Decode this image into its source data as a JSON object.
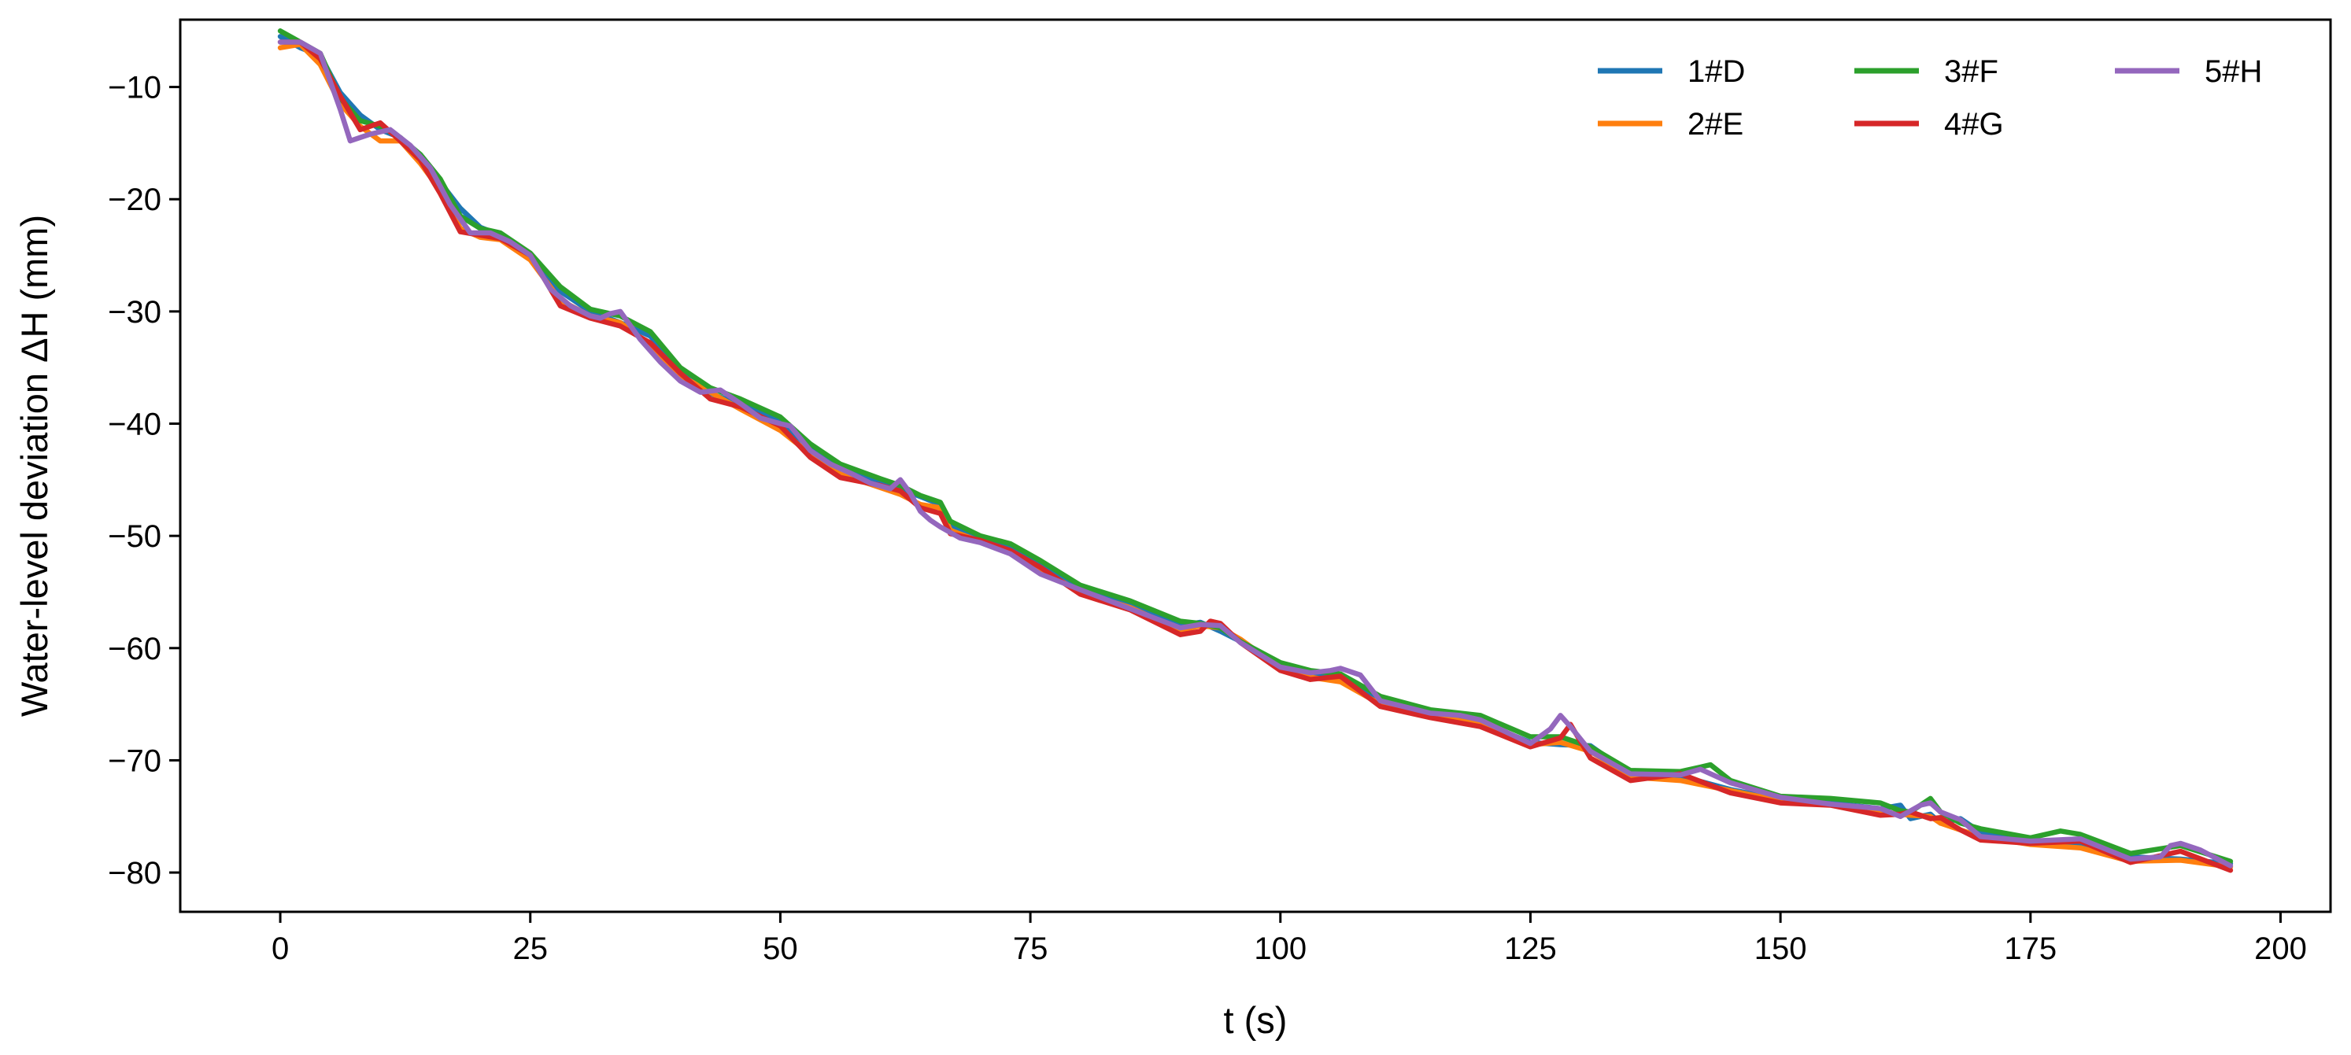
{
  "chart_data": {
    "type": "line",
    "title": "",
    "xlabel": "t (s)",
    "ylabel": "Water-level deviation ΔH (mm)",
    "xlim": [
      -10,
      205
    ],
    "ylim": [
      -83.5,
      -4
    ],
    "xticks": [
      0,
      25,
      50,
      75,
      100,
      125,
      150,
      175,
      200
    ],
    "yticks": [
      -10,
      -20,
      -30,
      -40,
      -50,
      -60,
      -70,
      -80
    ],
    "xtick_labels": [
      "0",
      "25",
      "50",
      "75",
      "100",
      "125",
      "150",
      "175",
      "200"
    ],
    "ytick_labels": [
      "−10",
      "−20",
      "−30",
      "−40",
      "−50",
      "−60",
      "−70",
      "−80"
    ],
    "grid": false,
    "legend": {
      "placement": "top-right",
      "columns": 3
    },
    "series": [
      {
        "name": "1#D",
        "color": "#1f77b4",
        "x": [
          0,
          2,
          4,
          6,
          8,
          10,
          12,
          14,
          16,
          18,
          20,
          22,
          25,
          28,
          31,
          34,
          37,
          40,
          43,
          46,
          50,
          53,
          56,
          60,
          62,
          64,
          66,
          67,
          70,
          73,
          76,
          80,
          85,
          90,
          92,
          94,
          96,
          100,
          103,
          106,
          110,
          115,
          120,
          125,
          128,
          131,
          135,
          140,
          145,
          150,
          155,
          160,
          162,
          163,
          165,
          166,
          168,
          170,
          175,
          180,
          185,
          190,
          195
        ],
        "y": [
          -5.5,
          -6.5,
          -7.2,
          -10.5,
          -12.5,
          -13.8,
          -14.5,
          -16.2,
          -18.5,
          -20.8,
          -22.5,
          -23.2,
          -25.2,
          -28.2,
          -30.0,
          -31.0,
          -32.2,
          -35.2,
          -37.3,
          -38.3,
          -39.8,
          -42.2,
          -44.0,
          -45.2,
          -45.8,
          -46.5,
          -47.2,
          -49.0,
          -50.2,
          -51.0,
          -52.5,
          -54.8,
          -56.2,
          -58.0,
          -57.7,
          -58.5,
          -59.4,
          -61.6,
          -62.3,
          -62.6,
          -64.6,
          -65.9,
          -66.6,
          -68.4,
          -68.6,
          -68.7,
          -71.2,
          -71.4,
          -72.6,
          -73.5,
          -73.8,
          -74.3,
          -74.0,
          -75.2,
          -74.8,
          -75.6,
          -75.2,
          -76.4,
          -77.2,
          -77.6,
          -78.6,
          -78.8,
          -79.2
        ]
      },
      {
        "name": "2#E",
        "color": "#ff7f0e",
        "x": [
          0,
          2,
          4,
          6,
          8,
          10,
          12,
          14,
          16,
          18,
          20,
          22,
          25,
          28,
          31,
          34,
          37,
          40,
          43,
          46,
          50,
          53,
          56,
          60,
          62,
          64,
          66,
          67,
          70,
          73,
          76,
          80,
          85,
          90,
          92,
          94,
          96,
          100,
          103,
          106,
          110,
          115,
          120,
          125,
          128,
          131,
          135,
          140,
          145,
          150,
          155,
          160,
          162,
          163,
          165,
          166,
          168,
          170,
          175,
          180,
          185,
          190,
          195
        ],
        "y": [
          -6.5,
          -6.2,
          -8.0,
          -11.5,
          -13.5,
          -14.8,
          -14.8,
          -16.8,
          -19.2,
          -22.6,
          -23.4,
          -23.6,
          -25.4,
          -29.0,
          -30.4,
          -31.0,
          -33.0,
          -35.7,
          -37.2,
          -38.7,
          -40.6,
          -42.7,
          -44.5,
          -45.7,
          -46.3,
          -47.2,
          -47.5,
          -49.5,
          -50.5,
          -51.5,
          -53.0,
          -55.0,
          -56.4,
          -58.4,
          -58.0,
          -58.2,
          -59.2,
          -61.8,
          -62.6,
          -63.0,
          -65.0,
          -66.0,
          -66.8,
          -68.6,
          -68.4,
          -69.2,
          -71.5,
          -71.8,
          -72.7,
          -73.6,
          -73.9,
          -74.6,
          -74.8,
          -74.9,
          -75.0,
          -75.6,
          -76.2,
          -76.8,
          -77.5,
          -77.8,
          -79.0,
          -78.9,
          -79.5
        ]
      },
      {
        "name": "3#F",
        "color": "#2ca02c",
        "x": [
          0,
          2,
          4,
          6,
          8,
          10,
          12,
          14,
          16,
          18,
          20,
          22,
          25,
          28,
          31,
          34,
          37,
          40,
          43,
          46,
          50,
          53,
          56,
          60,
          62,
          64,
          66,
          67,
          70,
          73,
          76,
          80,
          85,
          90,
          92,
          94,
          96,
          100,
          103,
          106,
          110,
          115,
          120,
          125,
          128,
          131,
          135,
          140,
          142,
          143,
          145,
          150,
          155,
          160,
          162,
          163,
          165,
          166,
          168,
          170,
          175,
          178,
          180,
          185,
          190,
          195
        ],
        "y": [
          -5.0,
          -6.0,
          -7.0,
          -11.0,
          -13.0,
          -13.5,
          -14.5,
          -16.0,
          -18.2,
          -21.5,
          -22.6,
          -23.0,
          -24.8,
          -27.8,
          -29.8,
          -30.4,
          -31.8,
          -35.0,
          -36.8,
          -37.8,
          -39.4,
          -41.8,
          -43.6,
          -44.9,
          -45.5,
          -46.4,
          -47.0,
          -48.7,
          -50.0,
          -50.7,
          -52.2,
          -54.4,
          -55.8,
          -57.6,
          -57.8,
          -58.2,
          -59.4,
          -61.3,
          -62.0,
          -62.3,
          -64.3,
          -65.5,
          -66.0,
          -67.9,
          -67.9,
          -68.8,
          -70.9,
          -71.0,
          -70.6,
          -70.4,
          -71.8,
          -73.2,
          -73.4,
          -73.8,
          -74.5,
          -74.6,
          -73.4,
          -74.6,
          -75.6,
          -76.1,
          -76.9,
          -76.3,
          -76.6,
          -78.3,
          -77.6,
          -79.0
        ]
      },
      {
        "name": "4#G",
        "color": "#d62728",
        "x": [
          0,
          2,
          4,
          6,
          8,
          10,
          12,
          14,
          16,
          18,
          20,
          22,
          25,
          28,
          31,
          34,
          37,
          40,
          43,
          46,
          50,
          53,
          56,
          60,
          62,
          64,
          66,
          67,
          70,
          73,
          76,
          80,
          85,
          90,
          92,
          93,
          94,
          96,
          100,
          103,
          106,
          110,
          115,
          120,
          125,
          128,
          129,
          131,
          135,
          140,
          145,
          150,
          155,
          160,
          162,
          163,
          165,
          166,
          168,
          170,
          175,
          180,
          185,
          190,
          195
        ],
        "y": [
          -6.0,
          -6.0,
          -7.5,
          -10.8,
          -13.8,
          -13.2,
          -14.8,
          -16.5,
          -19.5,
          -22.9,
          -23.2,
          -23.5,
          -25.0,
          -29.5,
          -30.6,
          -31.3,
          -32.8,
          -35.5,
          -37.8,
          -38.5,
          -40.2,
          -43.0,
          -44.8,
          -45.5,
          -46.0,
          -47.5,
          -48.0,
          -49.8,
          -50.4,
          -51.3,
          -52.8,
          -55.2,
          -56.6,
          -58.8,
          -58.5,
          -57.6,
          -57.8,
          -59.5,
          -62.0,
          -62.8,
          -62.5,
          -65.2,
          -66.2,
          -67.0,
          -68.8,
          -68.0,
          -66.8,
          -69.8,
          -71.8,
          -71.2,
          -72.9,
          -73.8,
          -74.0,
          -74.9,
          -74.8,
          -74.6,
          -75.2,
          -75.1,
          -76.2,
          -77.1,
          -77.4,
          -77.2,
          -79.1,
          -78.1,
          -79.8
        ]
      },
      {
        "name": "5#H",
        "color": "#9467bd",
        "x": [
          0,
          2,
          4,
          6,
          7,
          9,
          11,
          13,
          15,
          17,
          19,
          21,
          23,
          25,
          27,
          29,
          31,
          32,
          33,
          34,
          36,
          38,
          40,
          42,
          44,
          46,
          48,
          50,
          51,
          53,
          55,
          57,
          59,
          61,
          62,
          63,
          64,
          65,
          66,
          68,
          70,
          73,
          76,
          80,
          85,
          90,
          92,
          94,
          96,
          100,
          103,
          105,
          106,
          108,
          110,
          115,
          118,
          120,
          125,
          127,
          128,
          129,
          131,
          135,
          140,
          142,
          145,
          150,
          155,
          160,
          162,
          164,
          165,
          166,
          168,
          170,
          175,
          180,
          185,
          188,
          189,
          190,
          192,
          195
        ],
        "y": [
          -6.0,
          -6.0,
          -7.0,
          -12.0,
          -14.8,
          -14.2,
          -13.8,
          -15.2,
          -17.2,
          -20.5,
          -23.0,
          -23.0,
          -23.8,
          -25.0,
          -28.0,
          -29.5,
          -30.4,
          -30.6,
          -30.2,
          -30.0,
          -32.5,
          -34.5,
          -36.2,
          -37.2,
          -37.0,
          -38.2,
          -39.5,
          -40.0,
          -40.2,
          -42.4,
          -43.6,
          -44.4,
          -45.3,
          -45.8,
          -45.0,
          -46.2,
          -47.8,
          -48.6,
          -49.2,
          -50.2,
          -50.6,
          -51.6,
          -53.4,
          -54.8,
          -56.5,
          -58.2,
          -57.9,
          -58.0,
          -59.5,
          -61.7,
          -62.2,
          -62.0,
          -61.8,
          -62.4,
          -64.7,
          -65.8,
          -66.0,
          -66.4,
          -68.5,
          -67.2,
          -66.0,
          -67.0,
          -69.2,
          -71.2,
          -71.3,
          -70.8,
          -72.0,
          -73.3,
          -73.9,
          -74.3,
          -75.0,
          -74.0,
          -73.8,
          -74.6,
          -75.3,
          -76.8,
          -77.2,
          -77.0,
          -78.8,
          -78.6,
          -77.6,
          -77.4,
          -78.0,
          -79.4
        ]
      }
    ]
  }
}
